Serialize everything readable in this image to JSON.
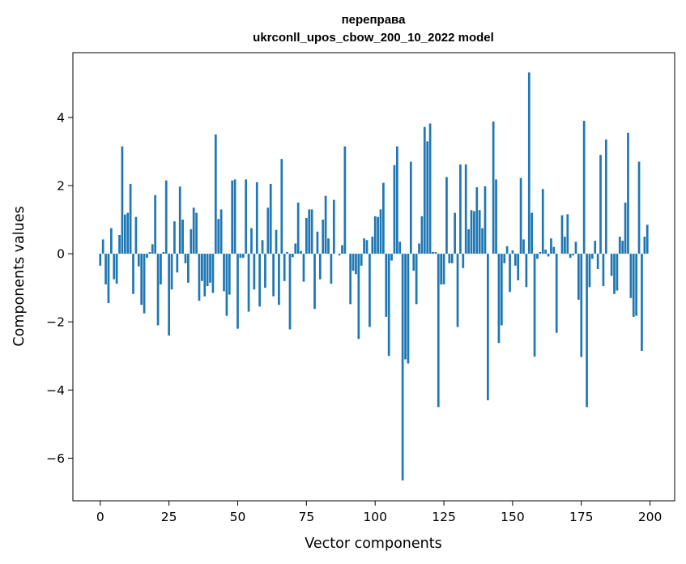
{
  "chart_data": {
    "type": "bar",
    "title": "переправа",
    "subtitle": "ukrconll_upos_cbow_200_10_2022 model",
    "xlabel": "Vector components",
    "ylabel": "Components values",
    "xlim": [
      -9.95,
      208.95
    ],
    "ylim": [
      -7.25,
      5.9
    ],
    "xticks": [
      0,
      25,
      50,
      75,
      100,
      125,
      150,
      175,
      200
    ],
    "xtick_labels": [
      "0",
      "25",
      "50",
      "75",
      "100",
      "125",
      "150",
      "175",
      "200"
    ],
    "yticks": [
      -6,
      -4,
      -2,
      0,
      2,
      4
    ],
    "ytick_labels": [
      "−6",
      "−4",
      "−2",
      "0",
      "2",
      "4"
    ],
    "bar_color": "#1f77b4",
    "grid": false,
    "legend": "none",
    "x": [
      0,
      1,
      2,
      3,
      4,
      5,
      6,
      7,
      8,
      9,
      10,
      11,
      12,
      13,
      14,
      15,
      16,
      17,
      18,
      19,
      20,
      21,
      22,
      23,
      24,
      25,
      26,
      27,
      28,
      29,
      30,
      31,
      32,
      33,
      34,
      35,
      36,
      37,
      38,
      39,
      40,
      41,
      42,
      43,
      44,
      45,
      46,
      47,
      48,
      49,
      50,
      51,
      52,
      53,
      54,
      55,
      56,
      57,
      58,
      59,
      60,
      61,
      62,
      63,
      64,
      65,
      66,
      67,
      68,
      69,
      70,
      71,
      72,
      73,
      74,
      75,
      76,
      77,
      78,
      79,
      80,
      81,
      82,
      83,
      84,
      85,
      86,
      87,
      88,
      89,
      90,
      91,
      92,
      93,
      94,
      95,
      96,
      97,
      98,
      99,
      100,
      101,
      102,
      103,
      104,
      105,
      106,
      107,
      108,
      109,
      110,
      111,
      112,
      113,
      114,
      115,
      116,
      117,
      118,
      119,
      120,
      121,
      122,
      123,
      124,
      125,
      126,
      127,
      128,
      129,
      130,
      131,
      132,
      133,
      134,
      135,
      136,
      137,
      138,
      139,
      140,
      141,
      142,
      143,
      144,
      145,
      146,
      147,
      148,
      149,
      150,
      151,
      152,
      153,
      154,
      155,
      156,
      157,
      158,
      159,
      160,
      161,
      162,
      163,
      164,
      165,
      166,
      167,
      168,
      169,
      170,
      171,
      172,
      173,
      174,
      175,
      176,
      177,
      178,
      179,
      180,
      181,
      182,
      183,
      184,
      185,
      186,
      187,
      188,
      189,
      190,
      191,
      192,
      193,
      194,
      195,
      196,
      197,
      198,
      199
    ],
    "values": [
      -0.35,
      0.42,
      -0.9,
      -1.45,
      0.75,
      -0.75,
      -0.88,
      0.55,
      3.15,
      1.15,
      1.2,
      2.05,
      -1.18,
      1.08,
      -0.37,
      -1.5,
      -1.75,
      -0.12,
      0.05,
      0.28,
      1.72,
      -2.1,
      -0.9,
      0.05,
      2.15,
      -2.4,
      -1.05,
      0.95,
      -0.55,
      1.97,
      1.0,
      -0.28,
      -0.85,
      0.72,
      1.35,
      1.2,
      -1.38,
      -0.8,
      -1.25,
      -0.95,
      -0.85,
      -1.15,
      3.5,
      1.02,
      1.3,
      -1.1,
      -1.82,
      -1.2,
      2.15,
      2.18,
      -2.2,
      -0.12,
      -0.12,
      2.18,
      -1.7,
      0.75,
      -1.05,
      2.1,
      -1.55,
      0.4,
      -1.0,
      1.35,
      2.05,
      -1.25,
      0.7,
      -1.5,
      2.78,
      -0.8,
      0.05,
      -2.22,
      -0.1,
      0.3,
      1.5,
      0.08,
      -0.82,
      1.05,
      1.3,
      1.3,
      -1.62,
      0.65,
      -0.75,
      1.0,
      1.7,
      0.45,
      -0.88,
      1.58,
      0.0,
      -0.05,
      0.25,
      3.15,
      0.0,
      -1.48,
      -0.5,
      -0.6,
      -2.5,
      -0.35,
      0.45,
      0.4,
      -2.15,
      0.5,
      1.1,
      1.08,
      1.3,
      2.08,
      -1.85,
      -3.0,
      -0.2,
      2.6,
      3.15,
      0.35,
      -6.65,
      -3.1,
      -3.22,
      2.7,
      -0.5,
      -1.48,
      0.3,
      1.1,
      3.72,
      3.3,
      3.82,
      0.05,
      0.05,
      -4.5,
      -0.9,
      -0.9,
      2.25,
      -0.28,
      -0.28,
      1.2,
      -2.15,
      2.62,
      -0.42,
      2.62,
      0.72,
      1.28,
      1.25,
      1.95,
      1.28,
      0.75,
      1.98,
      -4.3,
      0.0,
      3.88,
      2.18,
      -2.62,
      -2.1,
      -0.28,
      0.22,
      -1.12,
      0.1,
      -0.35,
      -0.78,
      2.22,
      0.42,
      -0.98,
      5.32,
      1.2,
      -3.02,
      -0.15,
      0.05,
      1.9,
      0.12,
      -0.08,
      0.45,
      0.2,
      -2.32,
      0.0,
      1.13,
      0.5,
      1.16,
      -0.12,
      -0.05,
      0.35,
      -1.35,
      -3.03,
      3.9,
      -4.5,
      -0.98,
      -0.15,
      0.38,
      -0.45,
      2.9,
      -0.95,
      3.35,
      0.0,
      -0.65,
      -1.18,
      -1.08,
      0.5,
      0.38,
      1.5,
      3.55,
      -1.3,
      -1.85,
      -1.82,
      2.7,
      -2.85,
      0.5,
      0.85
    ]
  }
}
